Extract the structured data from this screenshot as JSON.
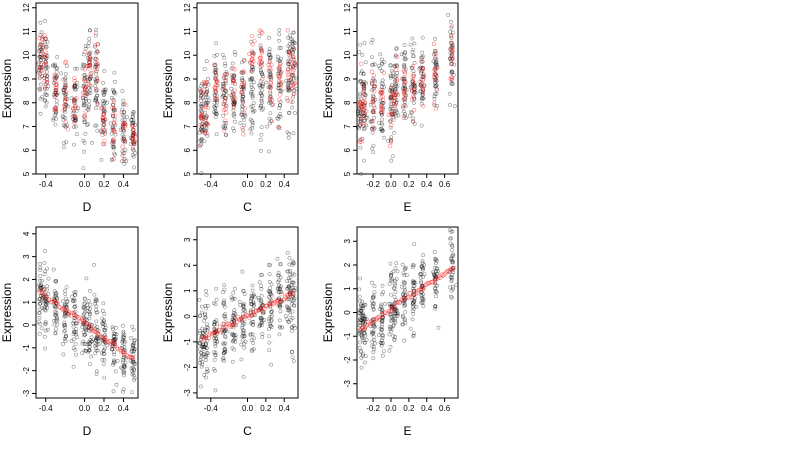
{
  "chart_data": [
    {
      "type": "scatter",
      "panel": "top-left",
      "xlabel": "D",
      "ylabel": "Expression",
      "xlim": [
        -0.5,
        0.55
      ],
      "ylim": [
        5,
        12.2
      ],
      "xticks": [
        -0.4,
        0.0,
        0.2,
        0.4
      ],
      "yticks": [
        5,
        6,
        7,
        8,
        9,
        10,
        11,
        12
      ],
      "colors": {
        "observed": "#000000",
        "fitted": "#ff0000"
      },
      "clusters": [
        {
          "x": -0.45,
          "center": 9.7,
          "spread": 1.1,
          "fit_offset": 0.1
        },
        {
          "x": -0.4,
          "center": 9.2,
          "spread": 1.2,
          "fit_offset": 0.2
        },
        {
          "x": -0.3,
          "center": 8.6,
          "spread": 1.2,
          "fit_offset": -0.1
        },
        {
          "x": -0.2,
          "center": 8.2,
          "spread": 1.2,
          "fit_offset": 0.0
        },
        {
          "x": -0.1,
          "center": 8.0,
          "spread": 1.1,
          "fit_offset": 0.0
        },
        {
          "x": 0.0,
          "center": 8.3,
          "spread": 1.2,
          "fit_offset": 0.3
        },
        {
          "x": 0.05,
          "center": 9.0,
          "spread": 1.4,
          "fit_offset": 0.6
        },
        {
          "x": 0.12,
          "center": 8.7,
          "spread": 1.5,
          "fit_offset": 0.5
        },
        {
          "x": 0.2,
          "center": 7.5,
          "spread": 1.0,
          "fit_offset": -0.3
        },
        {
          "x": 0.3,
          "center": 7.3,
          "spread": 1.1,
          "fit_offset": -0.2
        },
        {
          "x": 0.4,
          "center": 6.8,
          "spread": 1.0,
          "fit_offset": 0.0
        },
        {
          "x": 0.5,
          "center": 6.5,
          "spread": 0.9,
          "fit_offset": 0.1
        }
      ]
    },
    {
      "type": "scatter",
      "panel": "top-middle",
      "xlabel": "C",
      "ylabel": "Expression",
      "xlim": [
        -0.55,
        0.55
      ],
      "ylim": [
        5,
        12.2
      ],
      "xticks": [
        -0.4,
        0.0,
        0.2,
        0.4
      ],
      "yticks": [
        5,
        6,
        7,
        8,
        9,
        10,
        11,
        12
      ],
      "colors": {
        "observed": "#000000",
        "fitted": "#ff0000"
      },
      "clusters": [
        {
          "x": -0.5,
          "center": 7.6,
          "spread": 1.2,
          "fit_offset": -0.3
        },
        {
          "x": -0.45,
          "center": 8.0,
          "spread": 1.3,
          "fit_offset": 0.1
        },
        {
          "x": -0.35,
          "center": 8.4,
          "spread": 1.2,
          "fit_offset": 0.2
        },
        {
          "x": -0.25,
          "center": 8.3,
          "spread": 1.2,
          "fit_offset": 0.0
        },
        {
          "x": -0.15,
          "center": 8.2,
          "spread": 1.2,
          "fit_offset": 0.0
        },
        {
          "x": -0.05,
          "center": 8.3,
          "spread": 1.2,
          "fit_offset": 0.1
        },
        {
          "x": 0.05,
          "center": 8.6,
          "spread": 1.2,
          "fit_offset": 1.2
        },
        {
          "x": 0.15,
          "center": 8.8,
          "spread": 1.2,
          "fit_offset": 1.2
        },
        {
          "x": 0.25,
          "center": 8.7,
          "spread": 1.3,
          "fit_offset": 0.0
        },
        {
          "x": 0.35,
          "center": 8.9,
          "spread": 1.2,
          "fit_offset": 0.0
        },
        {
          "x": 0.45,
          "center": 9.2,
          "spread": 1.5,
          "fit_offset": 0.0
        },
        {
          "x": 0.5,
          "center": 9.4,
          "spread": 1.5,
          "fit_offset": 0.0
        }
      ]
    },
    {
      "type": "scatter",
      "panel": "top-right",
      "xlabel": "E",
      "ylabel": "Expression",
      "xlim": [
        -0.38,
        0.75
      ],
      "ylim": [
        5,
        12.2
      ],
      "xticks": [
        -0.2,
        0.0,
        0.2,
        0.4,
        0.6
      ],
      "yticks": [
        5,
        6,
        7,
        8,
        9,
        10,
        11,
        12
      ],
      "colors": {
        "observed": "#000000",
        "fitted": "#ff0000"
      },
      "clusters": [
        {
          "x": -0.34,
          "center": 7.6,
          "spread": 1.4,
          "fit_offset": -0.2
        },
        {
          "x": -0.3,
          "center": 7.8,
          "spread": 1.4,
          "fit_offset": 0.0
        },
        {
          "x": -0.2,
          "center": 8.1,
          "spread": 1.3,
          "fit_offset": 0.0
        },
        {
          "x": -0.1,
          "center": 8.3,
          "spread": 1.3,
          "fit_offset": 0.1
        },
        {
          "x": 0.0,
          "center": 8.0,
          "spread": 1.4,
          "fit_offset": -0.5
        },
        {
          "x": 0.05,
          "center": 8.4,
          "spread": 1.2,
          "fit_offset": 0.2
        },
        {
          "x": 0.15,
          "center": 8.6,
          "spread": 1.2,
          "fit_offset": 0.2
        },
        {
          "x": 0.25,
          "center": 8.8,
          "spread": 1.2,
          "fit_offset": 0.0
        },
        {
          "x": 0.35,
          "center": 9.0,
          "spread": 1.1,
          "fit_offset": 0.0
        },
        {
          "x": 0.5,
          "center": 9.3,
          "spread": 1.1,
          "fit_offset": 0.0
        },
        {
          "x": 0.68,
          "center": 9.8,
          "spread": 1.2,
          "fit_offset": 0.3
        }
      ]
    },
    {
      "type": "scatter",
      "panel": "bottom-left",
      "xlabel": "D",
      "ylabel": "Expression",
      "xlim": [
        -0.5,
        0.55
      ],
      "ylim": [
        -3.2,
        4.3
      ],
      "xticks": [
        -0.4,
        0.0,
        0.2,
        0.4
      ],
      "yticks": [
        -3,
        -2,
        -1,
        0,
        1,
        2,
        3,
        4
      ],
      "colors": {
        "observed": "#000000",
        "fitted": "#ff0000"
      },
      "fit_line": {
        "x": [
          -0.47,
          0.5
        ],
        "y": [
          1.5,
          -1.5
        ]
      },
      "clusters": [
        {
          "x": -0.45,
          "center": 1.4,
          "spread": 1.1
        },
        {
          "x": -0.4,
          "center": 1.2,
          "spread": 1.1
        },
        {
          "x": -0.3,
          "center": 0.8,
          "spread": 1.0
        },
        {
          "x": -0.2,
          "center": 0.5,
          "spread": 1.0
        },
        {
          "x": -0.1,
          "center": 0.2,
          "spread": 0.9
        },
        {
          "x": 0.0,
          "center": 0.0,
          "spread": 1.0
        },
        {
          "x": 0.05,
          "center": -0.2,
          "spread": 1.1
        },
        {
          "x": 0.12,
          "center": -0.3,
          "spread": 1.1
        },
        {
          "x": 0.2,
          "center": -0.6,
          "spread": 0.9
        },
        {
          "x": 0.3,
          "center": -0.9,
          "spread": 0.9
        },
        {
          "x": 0.4,
          "center": -1.2,
          "spread": 1.0
        },
        {
          "x": 0.5,
          "center": -1.5,
          "spread": 0.9
        }
      ]
    },
    {
      "type": "scatter",
      "panel": "bottom-middle",
      "xlabel": "C",
      "ylabel": "Expression",
      "xlim": [
        -0.55,
        0.55
      ],
      "ylim": [
        -3.2,
        3.5
      ],
      "xticks": [
        -0.4,
        0.0,
        0.2,
        0.4
      ],
      "yticks": [
        -3,
        -2,
        -1,
        0,
        1,
        2,
        3
      ],
      "colors": {
        "observed": "#000000",
        "fitted": "#ff0000"
      },
      "fit_line": {
        "x": [
          -0.5,
          0.5
        ],
        "y": [
          -0.9,
          0.9
        ]
      },
      "clusters": [
        {
          "x": -0.5,
          "center": -0.9,
          "spread": 1.1
        },
        {
          "x": -0.45,
          "center": -0.8,
          "spread": 1.1
        },
        {
          "x": -0.35,
          "center": -0.6,
          "spread": 1.0
        },
        {
          "x": -0.25,
          "center": -0.4,
          "spread": 1.0
        },
        {
          "x": -0.15,
          "center": -0.3,
          "spread": 1.0
        },
        {
          "x": -0.05,
          "center": -0.1,
          "spread": 1.0
        },
        {
          "x": 0.05,
          "center": 0.1,
          "spread": 1.0
        },
        {
          "x": 0.15,
          "center": 0.3,
          "spread": 1.0
        },
        {
          "x": 0.25,
          "center": 0.45,
          "spread": 1.0
        },
        {
          "x": 0.35,
          "center": 0.6,
          "spread": 1.0
        },
        {
          "x": 0.45,
          "center": 0.8,
          "spread": 1.2
        },
        {
          "x": 0.5,
          "center": 0.9,
          "spread": 1.3
        }
      ]
    },
    {
      "type": "scatter",
      "panel": "bottom-right",
      "xlabel": "E",
      "ylabel": "Expression",
      "xlim": [
        -0.38,
        0.75
      ],
      "ylim": [
        -3.6,
        3.6
      ],
      "xticks": [
        -0.2,
        0.0,
        0.2,
        0.4,
        0.6
      ],
      "yticks": [
        -3,
        -2,
        -1,
        0,
        1,
        2,
        3
      ],
      "colors": {
        "observed": "#000000",
        "fitted": "#ff0000"
      },
      "fit_line": {
        "x": [
          -0.34,
          0.7
        ],
        "y": [
          -0.7,
          1.9
        ]
      },
      "clusters": [
        {
          "x": -0.34,
          "center": -0.7,
          "spread": 1.1
        },
        {
          "x": -0.3,
          "center": -0.6,
          "spread": 1.1
        },
        {
          "x": -0.2,
          "center": -0.35,
          "spread": 1.0
        },
        {
          "x": -0.1,
          "center": -0.1,
          "spread": 1.0
        },
        {
          "x": 0.0,
          "center": 0.15,
          "spread": 1.0
        },
        {
          "x": 0.05,
          "center": 0.3,
          "spread": 1.0
        },
        {
          "x": 0.15,
          "center": 0.55,
          "spread": 1.0
        },
        {
          "x": 0.25,
          "center": 0.8,
          "spread": 1.0
        },
        {
          "x": 0.35,
          "center": 1.05,
          "spread": 0.9
        },
        {
          "x": 0.5,
          "center": 1.4,
          "spread": 0.9
        },
        {
          "x": 0.68,
          "center": 1.9,
          "spread": 1.1
        }
      ]
    }
  ]
}
